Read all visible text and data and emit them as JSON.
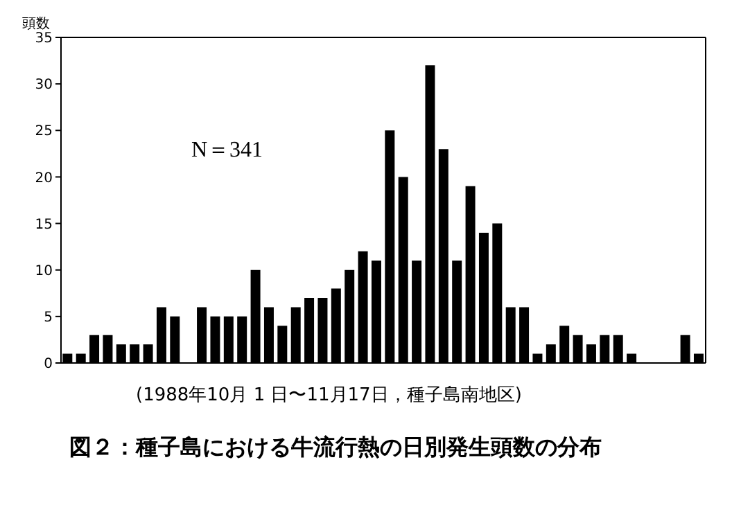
{
  "chart_data": {
    "type": "bar",
    "title": "図２：種子島における牛流行熱の日別発生頭数の分布",
    "subtitle": "(1988年10月 1 日〜11月17日，種子島南地区)",
    "ylabel": "頭数",
    "annotations": [
      "N＝341"
    ],
    "categories": [
      null,
      null,
      null,
      null,
      null,
      null,
      null,
      null,
      null,
      null,
      null,
      null,
      null,
      null,
      null,
      null,
      null,
      null,
      null,
      null,
      null,
      null,
      null,
      null,
      null,
      null,
      null,
      null,
      null,
      null,
      null,
      null,
      null,
      null,
      null,
      null,
      null,
      null,
      null,
      null,
      null,
      null,
      null,
      null,
      null,
      null,
      null,
      null
    ],
    "values": [
      1,
      1,
      3,
      3,
      2,
      2,
      2,
      6,
      5,
      0,
      6,
      5,
      5,
      5,
      10,
      6,
      4,
      6,
      7,
      7,
      8,
      10,
      12,
      11,
      25,
      20,
      11,
      32,
      23,
      11,
      19,
      14,
      15,
      6,
      6,
      1,
      2,
      4,
      3,
      2,
      3,
      3,
      1,
      0,
      0,
      0,
      3,
      1
    ],
    "color": "#000000",
    "ylim": [
      0,
      35
    ],
    "yticks": [
      0,
      5,
      10,
      15,
      20,
      25,
      30,
      35
    ],
    "grid": false,
    "legend": false,
    "tick_labels": "y"
  }
}
